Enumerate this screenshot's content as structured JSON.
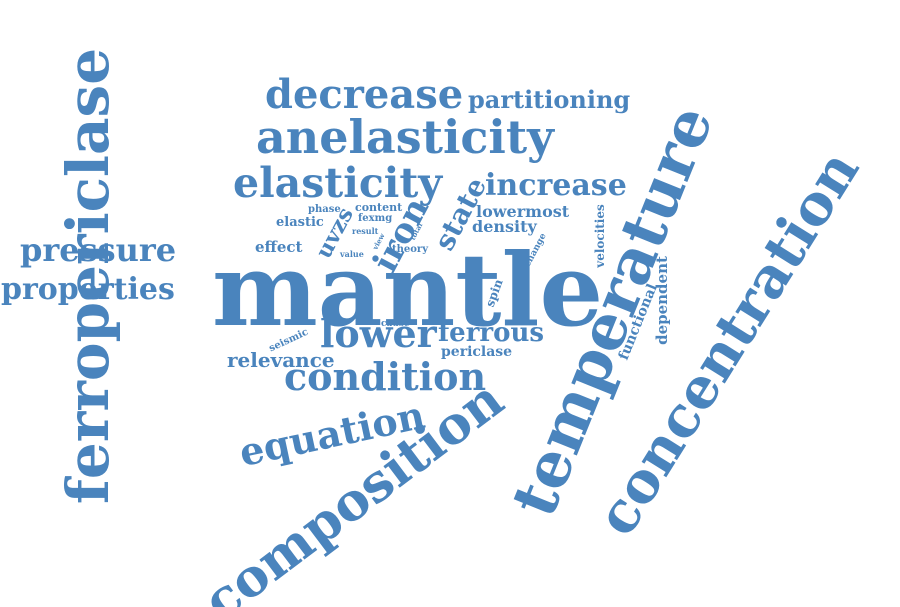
{
  "cloud": {
    "color": "#4a84bd",
    "words": {
      "mantle": "mantle",
      "ferropericlase": "ferropericlase",
      "temperature": "temperature",
      "concentration": "concentration",
      "composition": "composition",
      "anelasticity": "anelasticity",
      "elasticity": "elasticity",
      "decrease": "decrease",
      "partitioning": "partitioning",
      "increase": "increase",
      "pressure": "pressure",
      "properties": "properties",
      "condition": "condition",
      "equation": "equation",
      "lower": "lower",
      "ferrous": "ferrous",
      "iron": "iron",
      "state": "state",
      "uvzs": "uvzs",
      "relevance": "relevance",
      "periclase": "periclase",
      "lowermost": "lowermost",
      "density": "density",
      "effect": "effect",
      "elastic": "elastic",
      "phase": "phase",
      "content": "content",
      "fexmg": "fexmg",
      "result": "result",
      "theory": "theory",
      "value": "value",
      "view": "view",
      "total": "total",
      "seismic": "seismic",
      "cause": "cause",
      "spin": "spin",
      "change": "change",
      "velocities": "velocities",
      "functional": "functional",
      "dependent": "dependent"
    }
  }
}
